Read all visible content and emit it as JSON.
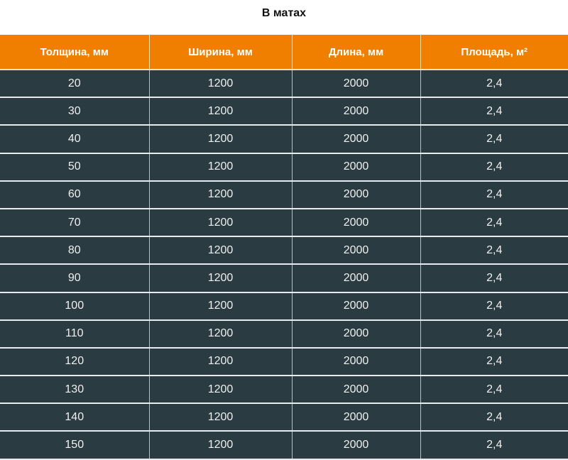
{
  "title": "В матах",
  "colors": {
    "header_bg": "#f07f00",
    "row_bg": "#2a3b42"
  },
  "table": {
    "headers": [
      "Толщина, мм",
      "Ширина, мм",
      "Длина, мм",
      "Площадь, м²"
    ],
    "rows": [
      [
        "20",
        "1200",
        "2000",
        "2,4"
      ],
      [
        "30",
        "1200",
        "2000",
        "2,4"
      ],
      [
        "40",
        "1200",
        "2000",
        "2,4"
      ],
      [
        "50",
        "1200",
        "2000",
        "2,4"
      ],
      [
        "60",
        "1200",
        "2000",
        "2,4"
      ],
      [
        "70",
        "1200",
        "2000",
        "2,4"
      ],
      [
        "80",
        "1200",
        "2000",
        "2,4"
      ],
      [
        "90",
        "1200",
        "2000",
        "2,4"
      ],
      [
        "100",
        "1200",
        "2000",
        "2,4"
      ],
      [
        "110",
        "1200",
        "2000",
        "2,4"
      ],
      [
        "120",
        "1200",
        "2000",
        "2,4"
      ],
      [
        "130",
        "1200",
        "2000",
        "2,4"
      ],
      [
        "140",
        "1200",
        "2000",
        "2,4"
      ],
      [
        "150",
        "1200",
        "2000",
        "2,4"
      ]
    ]
  }
}
